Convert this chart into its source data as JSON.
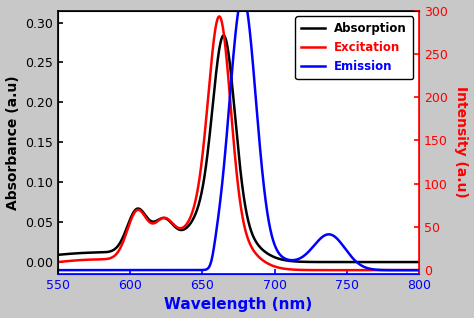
{
  "xlabel": "Wavelength (nm)",
  "ylabel_left": "Absorbance (a.u)",
  "ylabel_right": "Intensity (a.u)",
  "xlim": [
    550,
    800
  ],
  "ylim_left": [
    -0.015,
    0.315
  ],
  "ylim_right": [
    -4.5,
    300
  ],
  "xticks": [
    550,
    600,
    650,
    700,
    750,
    800
  ],
  "yticks_left": [
    0.0,
    0.05,
    0.1,
    0.15,
    0.2,
    0.25,
    0.3
  ],
  "yticks_right": [
    0,
    50,
    100,
    150,
    200,
    250,
    300
  ],
  "legend": [
    "Absorption",
    "Excitation",
    "Emission"
  ],
  "legend_colors": [
    "black",
    "red",
    "blue"
  ],
  "bg_color": "#c8c8c8",
  "axis_bg_color": "#ffffff",
  "label_color_x": "blue",
  "label_color_y_left": "black",
  "label_color_y_right": "red",
  "linewidth_abs": 1.8,
  "linewidth_exc": 1.8,
  "linewidth_emi": 1.8
}
